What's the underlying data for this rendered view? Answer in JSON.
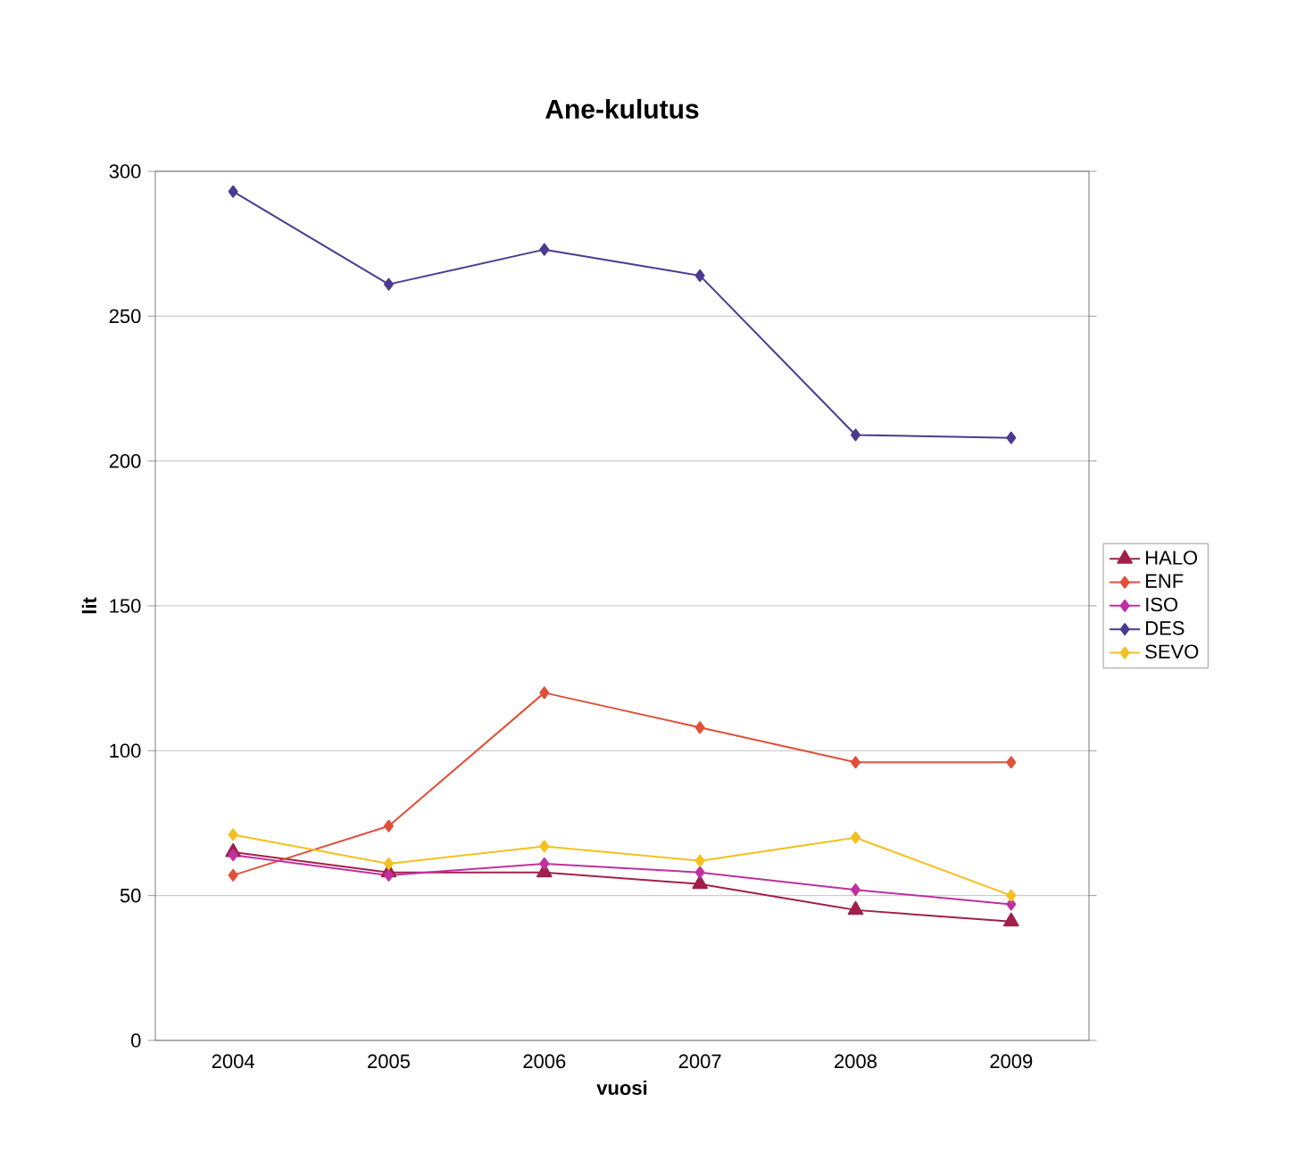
{
  "chart_data": {
    "type": "line",
    "title": "Ane-kulutus",
    "xlabel": "vuosi",
    "ylabel": "lit",
    "categories": [
      "2004",
      "2005",
      "2006",
      "2007",
      "2008",
      "2009"
    ],
    "series": [
      {
        "name": "HALO",
        "color": "#a0204a",
        "marker": "triangle",
        "values": [
          65,
          58,
          58,
          54,
          45,
          41
        ]
      },
      {
        "name": "ENF",
        "color": "#e0503a",
        "marker": "diamond",
        "values": [
          57,
          74,
          120,
          108,
          96,
          96
        ]
      },
      {
        "name": "ISO",
        "color": "#c030a0",
        "marker": "diamond",
        "values": [
          64,
          57,
          61,
          58,
          52,
          47
        ]
      },
      {
        "name": "DES",
        "color": "#4a3a90",
        "marker": "diamond",
        "values": [
          293,
          261,
          273,
          264,
          209,
          208
        ]
      },
      {
        "name": "SEVO",
        "color": "#f5c020",
        "marker": "diamond",
        "values": [
          71,
          61,
          67,
          62,
          70,
          50
        ]
      }
    ],
    "ylim": [
      0,
      300
    ],
    "yticks": [
      0,
      50,
      100,
      150,
      200,
      250,
      300
    ],
    "grid": "y",
    "legend": "right",
    "line_style": "solid"
  }
}
